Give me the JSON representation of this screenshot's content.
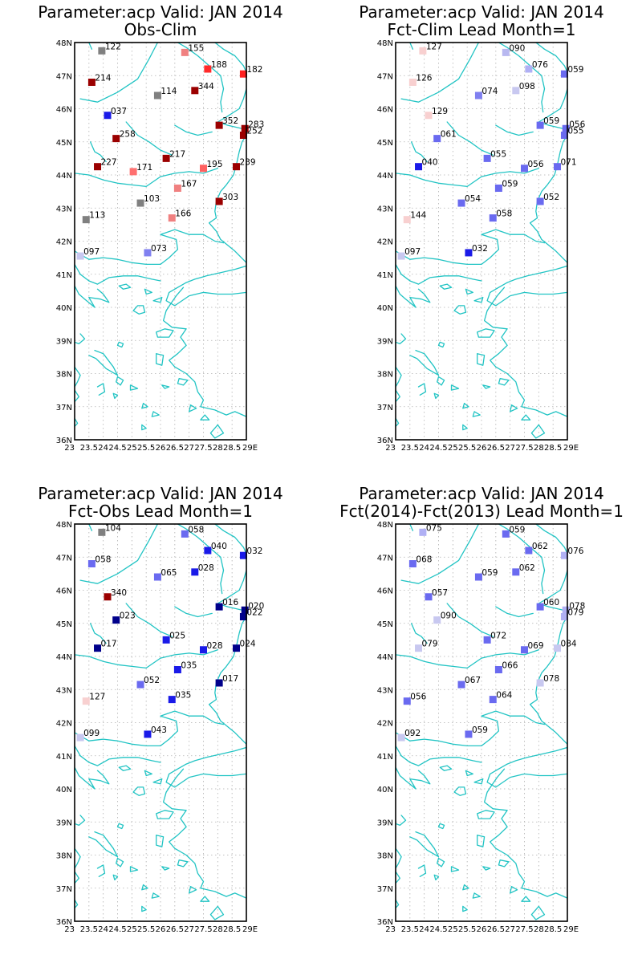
{
  "chart_data": [
    {
      "type": "scatter",
      "title": "Parameter:acp Valid: JAN 2014",
      "subtitle": "Obs-Clim",
      "xlim": [
        23,
        29
      ],
      "ylim": [
        36,
        48
      ],
      "x_ticks": [
        "23",
        "23.5",
        "24",
        "24.5",
        "25",
        "25.5",
        "26",
        "26.5",
        "27",
        "27.5",
        "28",
        "28.5",
        "29E"
      ],
      "y_ticks": [
        "36N",
        "37N",
        "38N",
        "39N",
        "40N",
        "41N",
        "42N",
        "43N",
        "44N",
        "45N",
        "46N",
        "47N",
        "48N"
      ],
      "grid": true,
      "points": [
        {
          "lon": 23.95,
          "lat": 47.75,
          "label": "122",
          "color": "#808080"
        },
        {
          "lon": 26.85,
          "lat": 47.7,
          "label": "155",
          "color": "#f08080"
        },
        {
          "lon": 27.65,
          "lat": 47.2,
          "label": "188",
          "color": "#ff2a2a"
        },
        {
          "lon": 28.9,
          "lat": 47.05,
          "label": "182",
          "color": "#ff2020"
        },
        {
          "lon": 23.6,
          "lat": 46.8,
          "label": "214",
          "color": "#9b0000"
        },
        {
          "lon": 27.2,
          "lat": 46.55,
          "label": "344",
          "color": "#9b0000"
        },
        {
          "lon": 25.9,
          "lat": 46.4,
          "label": "114",
          "color": "#808080"
        },
        {
          "lon": 24.15,
          "lat": 45.8,
          "label": "037",
          "color": "#1a1ae8"
        },
        {
          "lon": 28.05,
          "lat": 45.5,
          "label": "352",
          "color": "#9b0000"
        },
        {
          "lon": 28.95,
          "lat": 45.4,
          "label": "283",
          "color": "#9b0000"
        },
        {
          "lon": 28.9,
          "lat": 45.2,
          "label": "252",
          "color": "#9b0000"
        },
        {
          "lon": 24.45,
          "lat": 45.1,
          "label": "258",
          "color": "#9b0000"
        },
        {
          "lon": 26.2,
          "lat": 44.5,
          "label": "217",
          "color": "#9b0000"
        },
        {
          "lon": 23.8,
          "lat": 44.25,
          "label": "227",
          "color": "#9b0000"
        },
        {
          "lon": 27.5,
          "lat": 44.2,
          "label": "195",
          "color": "#ff6060"
        },
        {
          "lon": 28.65,
          "lat": 44.25,
          "label": "239",
          "color": "#9b0000"
        },
        {
          "lon": 25.05,
          "lat": 44.1,
          "label": "171",
          "color": "#ff7070"
        },
        {
          "lon": 26.6,
          "lat": 43.6,
          "label": "167",
          "color": "#f08080"
        },
        {
          "lon": 25.3,
          "lat": 43.15,
          "label": "103",
          "color": "#808080"
        },
        {
          "lon": 28.05,
          "lat": 43.2,
          "label": "303",
          "color": "#9b0000"
        },
        {
          "lon": 23.4,
          "lat": 42.65,
          "label": "113",
          "color": "#808080"
        },
        {
          "lon": 26.4,
          "lat": 42.7,
          "label": "166",
          "color": "#f08080"
        },
        {
          "lon": 25.55,
          "lat": 41.65,
          "label": "073",
          "color": "#8080f0"
        },
        {
          "lon": 23.2,
          "lat": 41.55,
          "label": "097",
          "color": "#c8c8f0"
        }
      ]
    },
    {
      "type": "scatter",
      "title": "Parameter:acp Valid: JAN 2014",
      "subtitle": "Fct-Clim Lead Month=1",
      "xlim": [
        23,
        29
      ],
      "ylim": [
        36,
        48
      ],
      "x_ticks": [
        "23",
        "23.5",
        "24",
        "24.5",
        "25",
        "25.5",
        "26",
        "26.5",
        "27",
        "27.5",
        "28",
        "28.5",
        "29E"
      ],
      "y_ticks": [
        "36N",
        "37N",
        "38N",
        "39N",
        "40N",
        "41N",
        "42N",
        "43N",
        "44N",
        "45N",
        "46N",
        "47N",
        "48N"
      ],
      "grid": true,
      "points": [
        {
          "lon": 23.95,
          "lat": 47.75,
          "label": "127",
          "color": "#f8d0d0"
        },
        {
          "lon": 26.85,
          "lat": 47.7,
          "label": "090",
          "color": "#b8b8f0"
        },
        {
          "lon": 27.65,
          "lat": 47.2,
          "label": "076",
          "color": "#b0b0f4"
        },
        {
          "lon": 28.9,
          "lat": 47.05,
          "label": "059",
          "color": "#6a6af0"
        },
        {
          "lon": 23.6,
          "lat": 46.8,
          "label": "126",
          "color": "#f8d0d0"
        },
        {
          "lon": 27.2,
          "lat": 46.55,
          "label": "098",
          "color": "#c8c8f0"
        },
        {
          "lon": 25.9,
          "lat": 46.4,
          "label": "074",
          "color": "#8080f0"
        },
        {
          "lon": 24.15,
          "lat": 45.8,
          "label": "129",
          "color": "#f8d0d0"
        },
        {
          "lon": 28.05,
          "lat": 45.5,
          "label": "059",
          "color": "#6a6af0"
        },
        {
          "lon": 28.95,
          "lat": 45.4,
          "label": "056",
          "color": "#6a6af0"
        },
        {
          "lon": 28.9,
          "lat": 45.2,
          "label": "055",
          "color": "#6a6af0"
        },
        {
          "lon": 24.45,
          "lat": 45.1,
          "label": "061",
          "color": "#6a6af0"
        },
        {
          "lon": 26.2,
          "lat": 44.5,
          "label": "055",
          "color": "#6a6af0"
        },
        {
          "lon": 23.8,
          "lat": 44.25,
          "label": "040",
          "color": "#1a1ae8"
        },
        {
          "lon": 27.5,
          "lat": 44.2,
          "label": "056",
          "color": "#6a6af0"
        },
        {
          "lon": 28.65,
          "lat": 44.25,
          "label": "071",
          "color": "#6a6af0"
        },
        {
          "lon": 26.6,
          "lat": 43.6,
          "label": "059",
          "color": "#6a6af0"
        },
        {
          "lon": 25.3,
          "lat": 43.15,
          "label": "054",
          "color": "#6a6af0"
        },
        {
          "lon": 28.05,
          "lat": 43.2,
          "label": "052",
          "color": "#6a6af0"
        },
        {
          "lon": 23.4,
          "lat": 42.65,
          "label": "144",
          "color": "#f8d0d0"
        },
        {
          "lon": 26.4,
          "lat": 42.7,
          "label": "058",
          "color": "#6a6af0"
        },
        {
          "lon": 25.55,
          "lat": 41.65,
          "label": "032",
          "color": "#1a1ae8"
        },
        {
          "lon": 23.2,
          "lat": 41.55,
          "label": "097",
          "color": "#c8c8f0"
        }
      ]
    },
    {
      "type": "scatter",
      "title": "Parameter:acp Valid: JAN 2014",
      "subtitle": "Fct-Obs Lead Month=1",
      "xlim": [
        23,
        29
      ],
      "ylim": [
        36,
        48
      ],
      "x_ticks": [
        "23",
        "23.5",
        "24",
        "24.5",
        "25",
        "25.5",
        "26",
        "26.5",
        "27",
        "27.5",
        "28",
        "28.5",
        "29E"
      ],
      "y_ticks": [
        "36N",
        "37N",
        "38N",
        "39N",
        "40N",
        "41N",
        "42N",
        "43N",
        "44N",
        "45N",
        "46N",
        "47N",
        "48N"
      ],
      "grid": true,
      "points": [
        {
          "lon": 23.95,
          "lat": 47.75,
          "label": "104",
          "color": "#808080"
        },
        {
          "lon": 26.85,
          "lat": 47.7,
          "label": "058",
          "color": "#6a6af0"
        },
        {
          "lon": 27.65,
          "lat": 47.2,
          "label": "040",
          "color": "#1a1ae8"
        },
        {
          "lon": 28.9,
          "lat": 47.05,
          "label": "032",
          "color": "#1a1ae8"
        },
        {
          "lon": 23.6,
          "lat": 46.8,
          "label": "058",
          "color": "#6a6af0"
        },
        {
          "lon": 27.2,
          "lat": 46.55,
          "label": "028",
          "color": "#1a1ae8"
        },
        {
          "lon": 25.9,
          "lat": 46.4,
          "label": "065",
          "color": "#6a6af0"
        },
        {
          "lon": 24.15,
          "lat": 45.8,
          "label": "340",
          "color": "#9b0000"
        },
        {
          "lon": 28.05,
          "lat": 45.5,
          "label": "016",
          "color": "#00008b"
        },
        {
          "lon": 28.95,
          "lat": 45.4,
          "label": "020",
          "color": "#00008b"
        },
        {
          "lon": 28.9,
          "lat": 45.2,
          "label": "022",
          "color": "#00008b"
        },
        {
          "lon": 24.45,
          "lat": 45.1,
          "label": "023",
          "color": "#00008b"
        },
        {
          "lon": 26.2,
          "lat": 44.5,
          "label": "025",
          "color": "#1a1ae8"
        },
        {
          "lon": 23.8,
          "lat": 44.25,
          "label": "017",
          "color": "#00008b"
        },
        {
          "lon": 27.5,
          "lat": 44.2,
          "label": "028",
          "color": "#1a1ae8"
        },
        {
          "lon": 28.65,
          "lat": 44.25,
          "label": "024",
          "color": "#00008b"
        },
        {
          "lon": 26.6,
          "lat": 43.6,
          "label": "035",
          "color": "#1a1ae8"
        },
        {
          "lon": 25.3,
          "lat": 43.15,
          "label": "052",
          "color": "#6a6af0"
        },
        {
          "lon": 28.05,
          "lat": 43.2,
          "label": "017",
          "color": "#00008b"
        },
        {
          "lon": 23.4,
          "lat": 42.65,
          "label": "127",
          "color": "#f8d0d0"
        },
        {
          "lon": 26.4,
          "lat": 42.7,
          "label": "035",
          "color": "#1a1ae8"
        },
        {
          "lon": 25.55,
          "lat": 41.65,
          "label": "043",
          "color": "#1a1ae8"
        },
        {
          "lon": 23.2,
          "lat": 41.55,
          "label": "099",
          "color": "#c8c8f0"
        }
      ]
    },
    {
      "type": "scatter",
      "title": "Parameter:acp Valid: JAN 2014",
      "subtitle": "Fct(2014)-Fct(2013) Lead Month=1",
      "xlim": [
        23,
        29
      ],
      "ylim": [
        36,
        48
      ],
      "x_ticks": [
        "23",
        "23.5",
        "24",
        "24.5",
        "25",
        "25.5",
        "26",
        "26.5",
        "27",
        "27.5",
        "28",
        "28.5",
        "29E"
      ],
      "y_ticks": [
        "36N",
        "37N",
        "38N",
        "39N",
        "40N",
        "41N",
        "42N",
        "43N",
        "44N",
        "45N",
        "46N",
        "47N",
        "48N"
      ],
      "grid": true,
      "points": [
        {
          "lon": 23.95,
          "lat": 47.75,
          "label": "075",
          "color": "#b0b0f4"
        },
        {
          "lon": 26.85,
          "lat": 47.7,
          "label": "059",
          "color": "#6a6af0"
        },
        {
          "lon": 27.65,
          "lat": 47.2,
          "label": "062",
          "color": "#6a6af0"
        },
        {
          "lon": 28.9,
          "lat": 47.05,
          "label": "076",
          "color": "#b0b0f4"
        },
        {
          "lon": 23.6,
          "lat": 46.8,
          "label": "068",
          "color": "#6a6af0"
        },
        {
          "lon": 27.2,
          "lat": 46.55,
          "label": "062",
          "color": "#6a6af0"
        },
        {
          "lon": 25.9,
          "lat": 46.4,
          "label": "059",
          "color": "#6a6af0"
        },
        {
          "lon": 24.15,
          "lat": 45.8,
          "label": "057",
          "color": "#6a6af0"
        },
        {
          "lon": 28.05,
          "lat": 45.5,
          "label": "060",
          "color": "#6a6af0"
        },
        {
          "lon": 28.95,
          "lat": 45.4,
          "label": "078",
          "color": "#b0b0f4"
        },
        {
          "lon": 28.9,
          "lat": 45.2,
          "label": "079",
          "color": "#b0b0f4"
        },
        {
          "lon": 24.45,
          "lat": 45.1,
          "label": "090",
          "color": "#c8c8f0"
        },
        {
          "lon": 26.2,
          "lat": 44.5,
          "label": "072",
          "color": "#6a6af0"
        },
        {
          "lon": 23.8,
          "lat": 44.25,
          "label": "079",
          "color": "#c8c8f0"
        },
        {
          "lon": 27.5,
          "lat": 44.2,
          "label": "069",
          "color": "#6a6af0"
        },
        {
          "lon": 28.65,
          "lat": 44.25,
          "label": "084",
          "color": "#c8c8f0"
        },
        {
          "lon": 26.6,
          "lat": 43.6,
          "label": "066",
          "color": "#6a6af0"
        },
        {
          "lon": 25.3,
          "lat": 43.15,
          "label": "067",
          "color": "#6a6af0"
        },
        {
          "lon": 28.05,
          "lat": 43.2,
          "label": "078",
          "color": "#c8c8f0"
        },
        {
          "lon": 23.4,
          "lat": 42.65,
          "label": "056",
          "color": "#6a6af0"
        },
        {
          "lon": 26.4,
          "lat": 42.7,
          "label": "064",
          "color": "#6a6af0"
        },
        {
          "lon": 25.55,
          "lat": 41.65,
          "label": "059",
          "color": "#6a6af0"
        },
        {
          "lon": 23.2,
          "lat": 41.55,
          "label": "092",
          "color": "#c8c8f0"
        }
      ]
    }
  ]
}
